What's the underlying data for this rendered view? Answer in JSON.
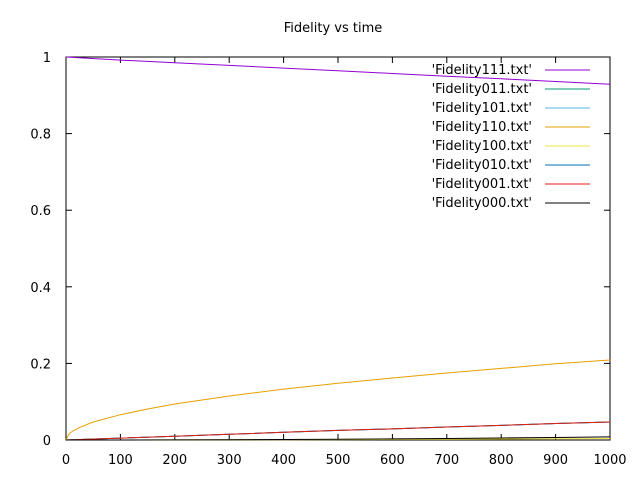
{
  "chart_data": {
    "type": "line",
    "title": "Fidelity vs time",
    "xlabel": "",
    "ylabel": "",
    "xlim": [
      0,
      1000
    ],
    "ylim": [
      0,
      1
    ],
    "xticks": [
      "0",
      "100",
      "200",
      "300",
      "400",
      "500",
      "600",
      "700",
      "800",
      "900",
      "1000"
    ],
    "yticks": [
      "0",
      "0.2",
      "0.4",
      "0.6",
      "0.8",
      "1"
    ],
    "grid": false,
    "legend_position": "top-right",
    "series": [
      {
        "name": "'Fidelity111.txt'",
        "color": "#9400d3",
        "x": [
          0,
          100,
          200,
          300,
          400,
          500,
          600,
          700,
          800,
          900,
          1000
        ],
        "y": [
          1.0,
          0.992,
          0.985,
          0.978,
          0.971,
          0.964,
          0.957,
          0.95,
          0.943,
          0.936,
          0.929
        ]
      },
      {
        "name": "'Fidelity011.txt'",
        "color": "#009e73",
        "x": [
          0,
          100,
          200,
          300,
          400,
          500,
          600,
          700,
          800,
          900,
          1000
        ],
        "y": [
          0.0,
          0.005,
          0.01,
          0.015,
          0.02,
          0.025,
          0.029,
          0.034,
          0.038,
          0.043,
          0.047
        ]
      },
      {
        "name": "'Fidelity101.txt'",
        "color": "#56b4e9",
        "x": [
          0,
          100,
          200,
          300,
          400,
          500,
          600,
          700,
          800,
          900,
          1000
        ],
        "y": [
          0.0,
          0.005,
          0.01,
          0.015,
          0.02,
          0.025,
          0.029,
          0.034,
          0.038,
          0.043,
          0.047
        ]
      },
      {
        "name": "'Fidelity110.txt'",
        "color": "#e69f00",
        "x": [
          0,
          5,
          10,
          25,
          50,
          100,
          150,
          200,
          300,
          400,
          500,
          600,
          700,
          800,
          900,
          1000
        ],
        "y": [
          0.0,
          0.015,
          0.021,
          0.033,
          0.047,
          0.066,
          0.081,
          0.094,
          0.115,
          0.133,
          0.148,
          0.162,
          0.175,
          0.187,
          0.199,
          0.209
        ]
      },
      {
        "name": "'Fidelity100.txt'",
        "color": "#f0e442",
        "x": [
          0,
          100,
          200,
          300,
          400,
          500,
          600,
          700,
          800,
          900,
          1000
        ],
        "y": [
          0.0,
          0.0001,
          0.0002,
          0.0004,
          0.0007,
          0.001,
          0.0015,
          0.002,
          0.0026,
          0.0033,
          0.004
        ]
      },
      {
        "name": "'Fidelity010.txt'",
        "color": "#0072b2",
        "x": [
          0,
          100,
          200,
          300,
          400,
          500,
          600,
          700,
          800,
          900,
          1000
        ],
        "y": [
          0.0,
          0.005,
          0.01,
          0.015,
          0.02,
          0.025,
          0.029,
          0.034,
          0.038,
          0.043,
          0.047
        ]
      },
      {
        "name": "'Fidelity001.txt'",
        "color": "#e51e10",
        "x": [
          0,
          100,
          200,
          300,
          400,
          500,
          600,
          700,
          800,
          900,
          1000
        ],
        "y": [
          0.0,
          0.005,
          0.01,
          0.015,
          0.02,
          0.025,
          0.029,
          0.034,
          0.038,
          0.043,
          0.047
        ]
      },
      {
        "name": "'Fidelity000.txt'",
        "color": "#000000",
        "x": [
          0,
          100,
          200,
          300,
          400,
          500,
          600,
          700,
          800,
          900,
          1000
        ],
        "y": [
          0.0,
          0.0001,
          0.0003,
          0.0007,
          0.0013,
          0.002,
          0.0029,
          0.004,
          0.0052,
          0.0066,
          0.008
        ]
      }
    ]
  }
}
